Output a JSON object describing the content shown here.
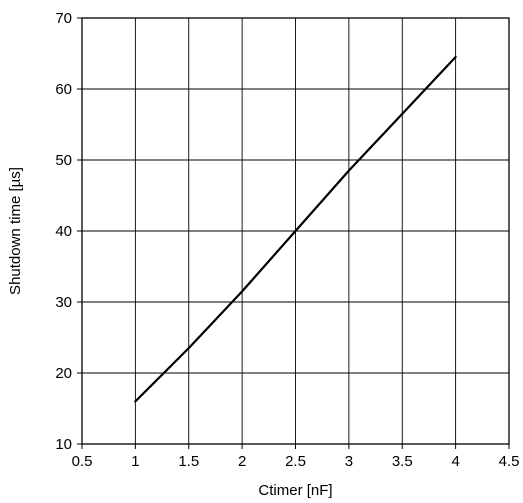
{
  "chart_data": {
    "type": "line",
    "title": "",
    "xlabel": "Ctimer [nF]",
    "ylabel": "Shutdown time [µs]",
    "xlim": [
      0.5,
      4.5
    ],
    "ylim": [
      10,
      70
    ],
    "xticks": [
      0.5,
      1,
      1.5,
      2,
      2.5,
      3,
      3.5,
      4,
      4.5
    ],
    "xtick_labels": [
      "0.5",
      "1",
      "1.5",
      "2",
      "2.5",
      "3",
      "3.5",
      "4",
      "4.5"
    ],
    "yticks": [
      10,
      20,
      30,
      40,
      50,
      60,
      70
    ],
    "ytick_labels": [
      "10",
      "20",
      "30",
      "40",
      "50",
      "60",
      "70"
    ],
    "grid": true,
    "legend": "none",
    "series": [
      {
        "color": "#000000",
        "x": [
          1,
          1.5,
          2,
          2.5,
          3,
          3.5,
          4
        ],
        "y": [
          16,
          23.5,
          31.5,
          40,
          48.5,
          56.5,
          64.5
        ]
      }
    ]
  }
}
